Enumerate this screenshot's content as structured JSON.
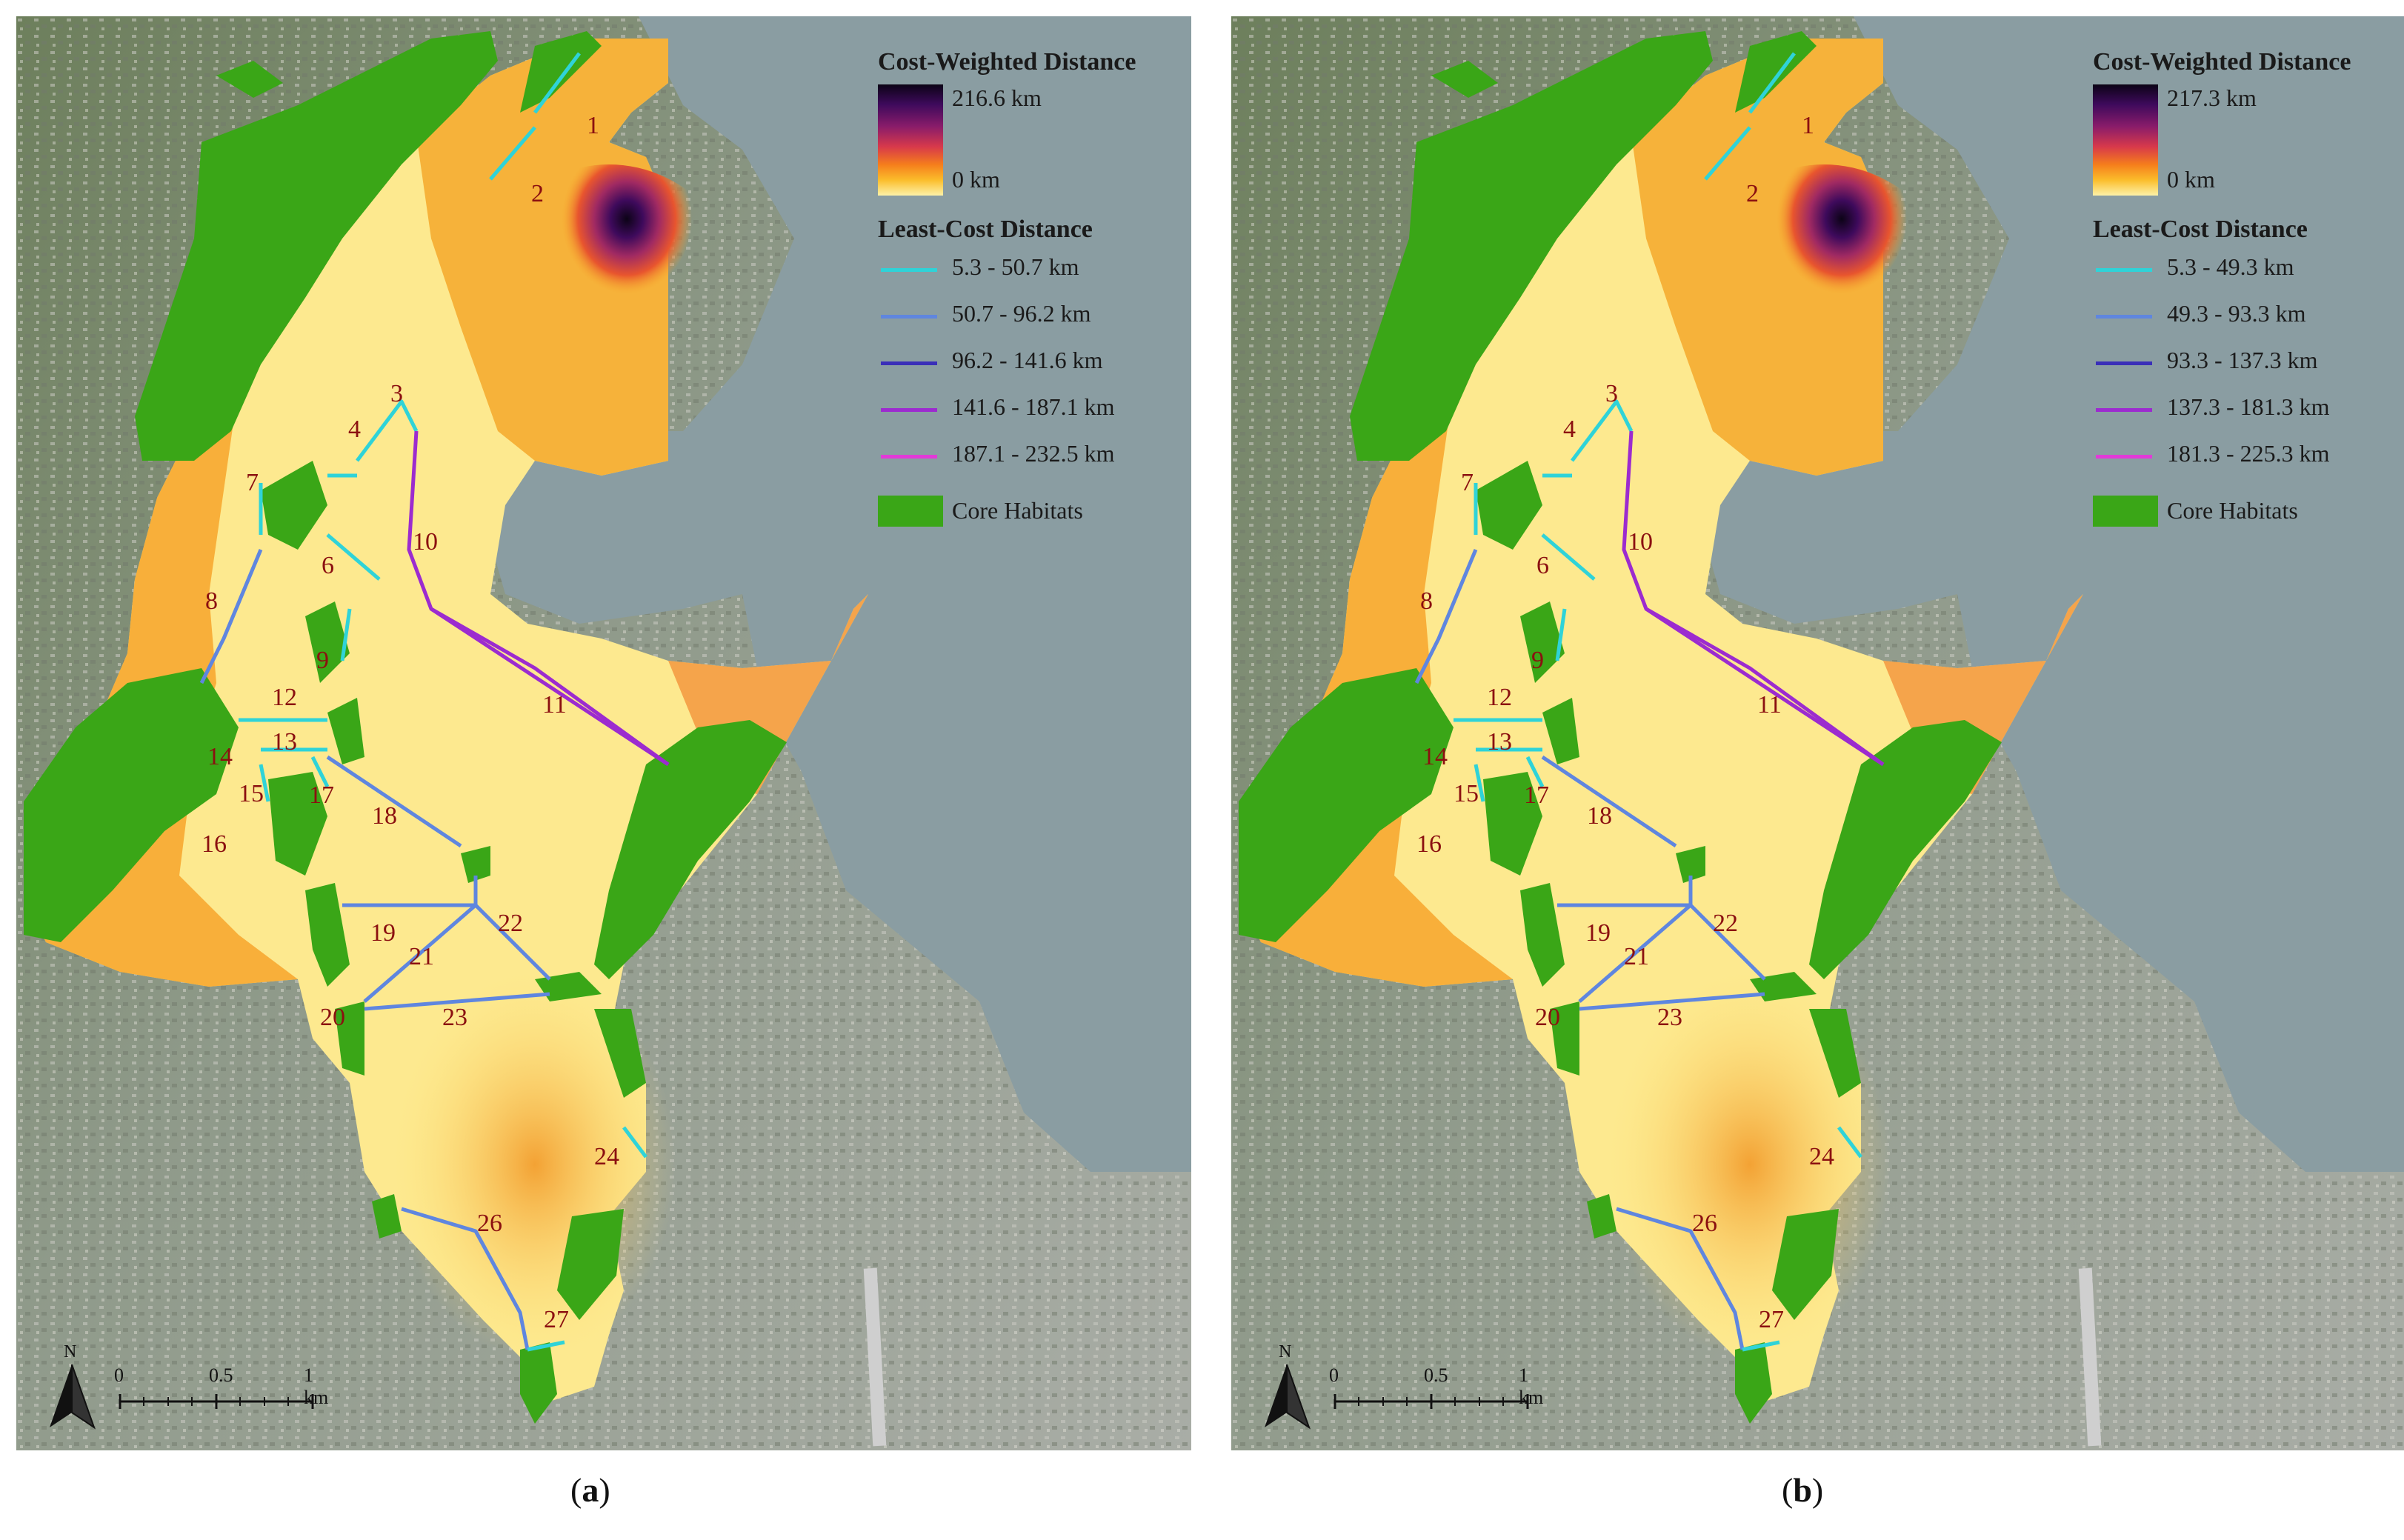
{
  "colors": {
    "core_habitat": "#3aa617",
    "label_red": "#8b1010",
    "cost_ramp": [
      "#fdf2a8",
      "#fbbd2b",
      "#f57d1c",
      "#d7394b",
      "#8a1c6a",
      "#3e0a5c",
      "#0c0316"
    ],
    "least_cost_classes": [
      "#2fd3d8",
      "#5f86df",
      "#3a2fb8",
      "#9c2bcf",
      "#e23ad8"
    ],
    "water": "#8a9da2",
    "urban": "#9aa39b"
  },
  "panels": [
    {
      "id": "a",
      "caption_letter": "a",
      "legend": {
        "cost_title": "Cost-Weighted Distance",
        "cost_max": "216.6 km",
        "cost_min": "0 km",
        "least_cost_title": "Least-Cost Distance",
        "classes": [
          "5.3 - 50.7 km",
          "50.7 - 96.2 km",
          "96.2 - 141.6 km",
          "141.6 - 187.1 km",
          "187.1 - 232.5 km"
        ],
        "core_label": "Core Habitats"
      },
      "north_label": "N",
      "scale_labels": [
        "0",
        "0.5",
        "1 km"
      ]
    },
    {
      "id": "b",
      "caption_letter": "b",
      "legend": {
        "cost_title": "Cost-Weighted Distance",
        "cost_max": "217.3 km",
        "cost_min": "0 km",
        "least_cost_title": "Least-Cost Distance",
        "classes": [
          "5.3 - 49.3 km",
          "49.3 - 93.3 km",
          "93.3 - 137.3 km",
          "137.3 - 181.3 km",
          "181.3 - 225.3 km"
        ],
        "core_label": "Core Habitats"
      },
      "north_label": "N",
      "scale_labels": [
        "0",
        "0.5",
        "1 km"
      ]
    }
  ],
  "corridors": [
    {
      "id": "1",
      "class": 0
    },
    {
      "id": "2",
      "class": 0
    },
    {
      "id": "3",
      "class": 0
    },
    {
      "id": "4",
      "class": 0
    },
    {
      "id": "6",
      "class": 0
    },
    {
      "id": "7",
      "class": 0
    },
    {
      "id": "8",
      "class": 1
    },
    {
      "id": "9",
      "class": 0
    },
    {
      "id": "10",
      "class": 3
    },
    {
      "id": "11",
      "class": 3
    },
    {
      "id": "12",
      "class": 0
    },
    {
      "id": "13",
      "class": 0
    },
    {
      "id": "14",
      "class": 0
    },
    {
      "id": "15",
      "class": 0
    },
    {
      "id": "16",
      "class": 0
    },
    {
      "id": "17",
      "class": 0
    },
    {
      "id": "18",
      "class": 1
    },
    {
      "id": "19",
      "class": 1
    },
    {
      "id": "20",
      "class": 0
    },
    {
      "id": "21",
      "class": 1
    },
    {
      "id": "22",
      "class": 1
    },
    {
      "id": "23",
      "class": 1
    },
    {
      "id": "24",
      "class": 0
    },
    {
      "id": "26",
      "class": 1
    },
    {
      "id": "27",
      "class": 0
    }
  ]
}
